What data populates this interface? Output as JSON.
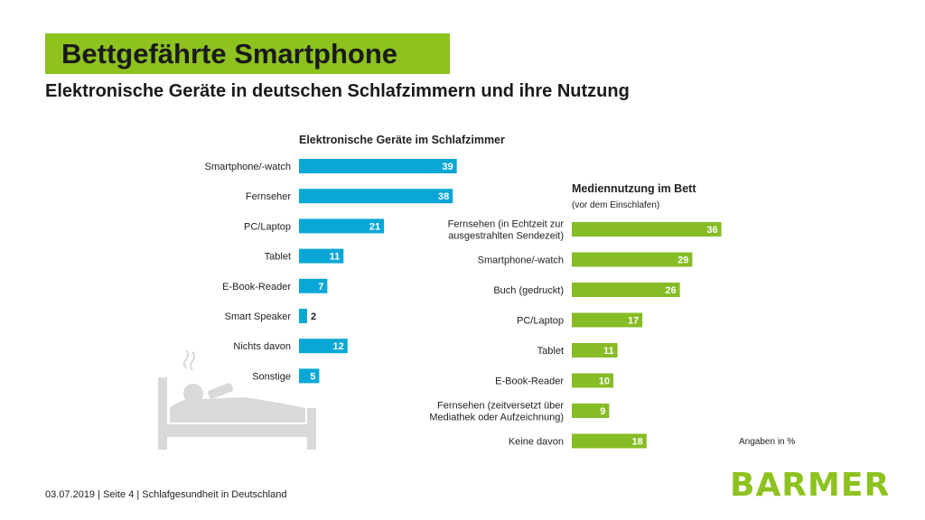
{
  "slide": {
    "title": "Bettgefährte Smartphone",
    "subtitle": "Elektronische Geräte in deutschen Schlafzimmern und ihre Nutzung",
    "unit_note": "Angaben in %",
    "footer": "03.07.2019 | Seite 4 | Schlafgesundheit in Deutschland",
    "logo": "BARMER",
    "colors": {
      "brand_green": "#8dc21f",
      "bar_blue": "#0aa7d6",
      "bar_green": "#86bc25"
    }
  },
  "chart_data": [
    {
      "type": "bar",
      "orientation": "horizontal",
      "title": "Elektronische Geräte im Schlafzimmer",
      "categories": [
        "Smartphone/-watch",
        "Fernseher",
        "PC/Laptop",
        "Tablet",
        "E-Book-Reader",
        "Smart Speaker",
        "Nichts davon",
        "Sonstige"
      ],
      "values": [
        39,
        38,
        21,
        11,
        7,
        2,
        12,
        5
      ],
      "color": "#0aa7d6"
    },
    {
      "type": "bar",
      "orientation": "horizontal",
      "title": "Mediennutzung im Bett",
      "subtitle": "(vor dem Einschlafen)",
      "categories": [
        [
          "Fernsehen (in Echtzeit zur",
          "ausgestrahlten Sendezeit)"
        ],
        "Smartphone/-watch",
        "Buch (gedruckt)",
        "PC/Laptop",
        "Tablet",
        "E-Book-Reader",
        [
          "Fernsehen (zeitversetzt über",
          "Mediathek oder Aufzeichnung)"
        ],
        "Keine davon"
      ],
      "values": [
        36,
        29,
        26,
        17,
        11,
        10,
        9,
        18
      ],
      "color": "#86bc25"
    }
  ]
}
